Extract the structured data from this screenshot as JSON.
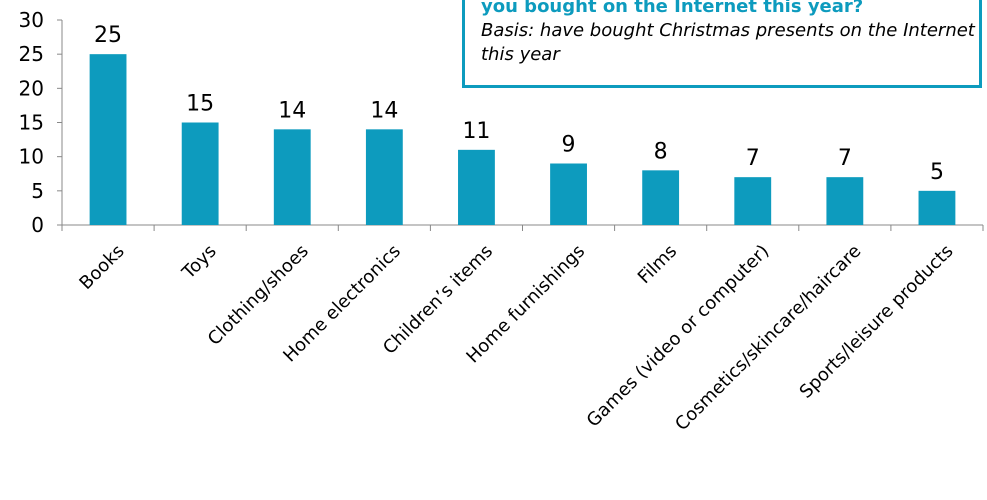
{
  "chart_data": {
    "type": "bar",
    "categories": [
      "Books",
      "Toys",
      "Clothing/shoes",
      "Home electronics",
      "Children’s items",
      "Home furnishings",
      "Films",
      "Games (video or computer)",
      "Cosmetics/skincare/haircare",
      "Sports/leisure products"
    ],
    "values": [
      25,
      15,
      14,
      14,
      11,
      9,
      8,
      7,
      7,
      5
    ],
    "ylim": [
      0,
      30
    ],
    "yticks": [
      0,
      5,
      10,
      15,
      20,
      25,
      30
    ],
    "bar_color": "#0d9bbe",
    "grid": false,
    "data_labels": true
  },
  "callout": {
    "question_visible": "you bought on the Internet this year?",
    "basis": "Basis: have bought Christmas presents on the Internet this year"
  }
}
